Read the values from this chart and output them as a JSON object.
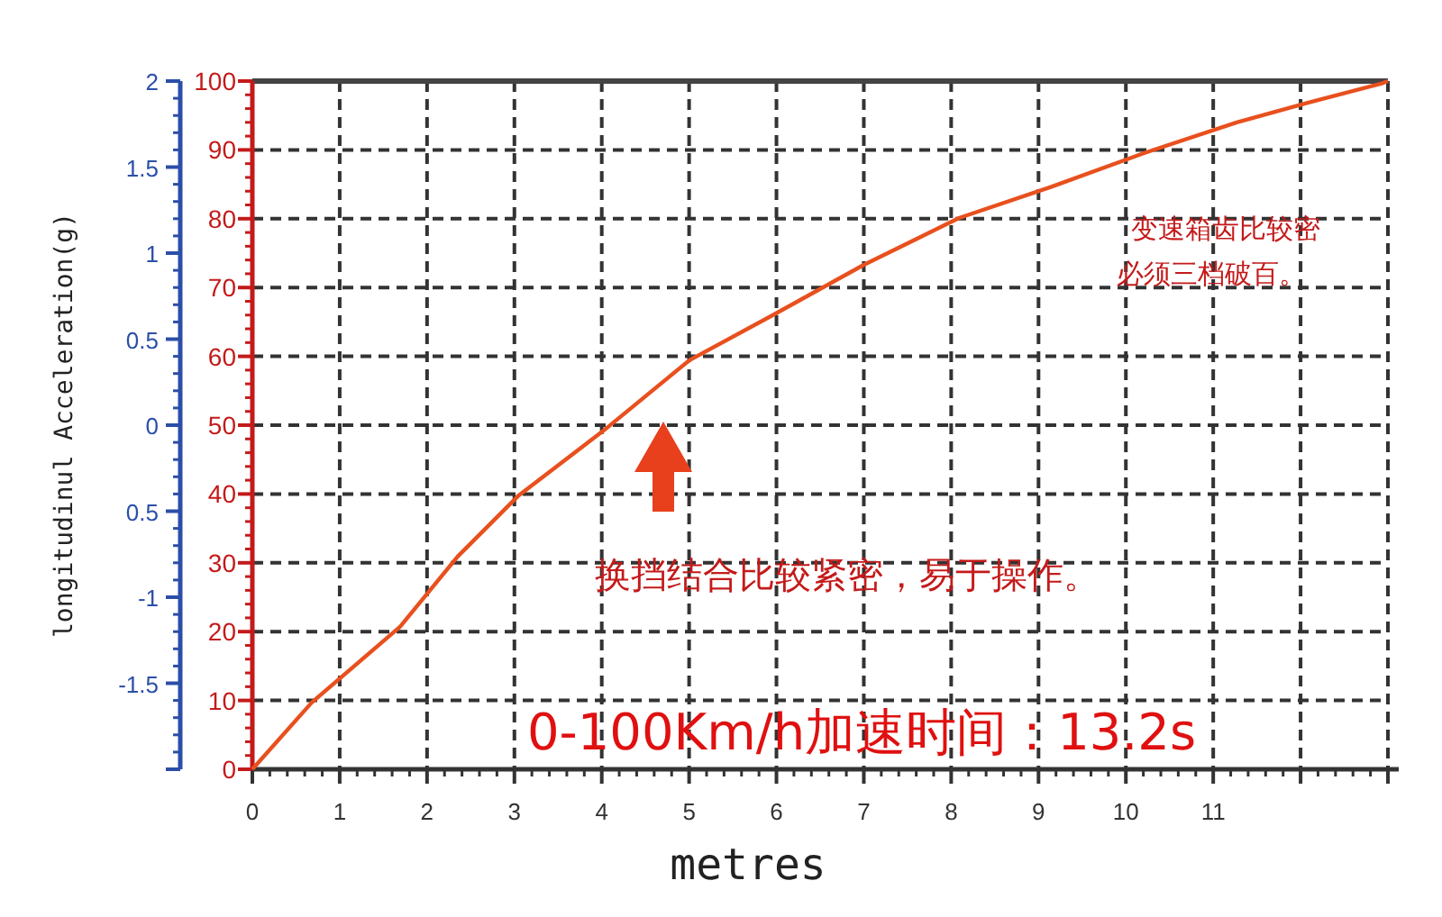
{
  "chart_data": {
    "type": "line",
    "xlabel": "metres",
    "y2label": "longitudinul Acceleration(g)",
    "x": [
      0,
      0.68,
      1.69,
      2.35,
      3.05,
      4.02,
      5.0,
      5.96,
      7.0,
      8.09,
      9.14,
      10.2,
      11.27,
      12.1,
      12.94,
      13
    ],
    "values": [
      0,
      9.7,
      20.7,
      30.9,
      39.8,
      49.2,
      59.4,
      66,
      73.3,
      80.1,
      84.6,
      89.5,
      94,
      96.9,
      99.7,
      100
    ],
    "color": "#e8501e",
    "line_style": "solid",
    "marker": "none",
    "grid": true,
    "xlim": [
      0,
      13
    ],
    "xticks": [
      0,
      1,
      2,
      3,
      4,
      5,
      6,
      7,
      8,
      9,
      10,
      11,
      {
        "value": 12,
        "label": null
      },
      {
        "value": 13,
        "label": null
      }
    ],
    "ylim": [
      0,
      100
    ],
    "yticks": [
      0,
      10,
      20,
      30,
      40,
      50,
      60,
      70,
      80,
      90,
      100
    ],
    "y2lim": [
      -2,
      2
    ],
    "y2ticks": [
      {
        "value": -2,
        "label": null
      },
      -1.5,
      -1,
      {
        "value": -0.5,
        "label": "0.5"
      },
      0,
      0.5,
      1,
      1.5,
      2
    ],
    "annotations": [
      "变速箱齿比较密",
      "必须三档破百。",
      "换挡结合比较紧密，易于操作。",
      "0-100Km/h加速时间：13.2s"
    ]
  }
}
